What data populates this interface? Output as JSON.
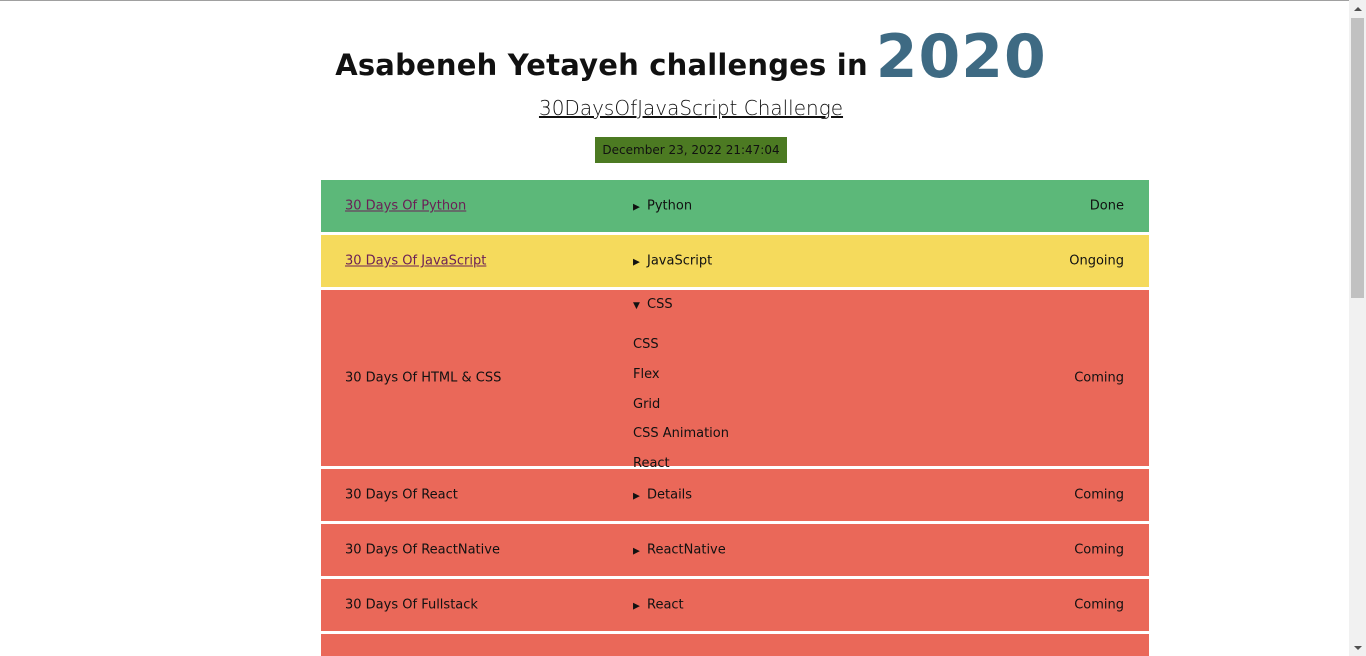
{
  "header": {
    "title": "Asabeneh Yetayeh challenges in",
    "year": "2020",
    "subtitle": "30DaysOfJavaScript Challenge",
    "datetime": "December 23, 2022 21:47:04"
  },
  "colors": {
    "done": "#5cb879",
    "ongoing": "#f5da5c",
    "coming": "#ea6859",
    "datetime_bg": "#4c7a22",
    "year": "#3e6a83"
  },
  "challenges": [
    {
      "name": "30 Days Of Python",
      "link": true,
      "summary": "Python",
      "open": false,
      "status": "Done"
    },
    {
      "name": "30 Days Of JavaScript",
      "link": true,
      "summary": "JavaScript",
      "open": false,
      "status": "Ongoing"
    },
    {
      "name": "30 Days Of HTML & CSS",
      "link": false,
      "summary": "CSS",
      "open": true,
      "topics": [
        "CSS",
        "Flex",
        "Grid",
        "CSS Animation",
        "React"
      ],
      "status": "Coming"
    },
    {
      "name": "30 Days Of React",
      "link": false,
      "summary": "Details",
      "open": false,
      "status": "Coming"
    },
    {
      "name": "30 Days Of ReactNative",
      "link": false,
      "summary": "ReactNative",
      "open": false,
      "status": "Coming"
    },
    {
      "name": "30 Days Of Fullstack",
      "link": false,
      "summary": "React",
      "open": false,
      "status": "Coming"
    }
  ],
  "icons": {
    "collapsed": "triangle-right-icon",
    "expanded": "triangle-down-icon"
  }
}
